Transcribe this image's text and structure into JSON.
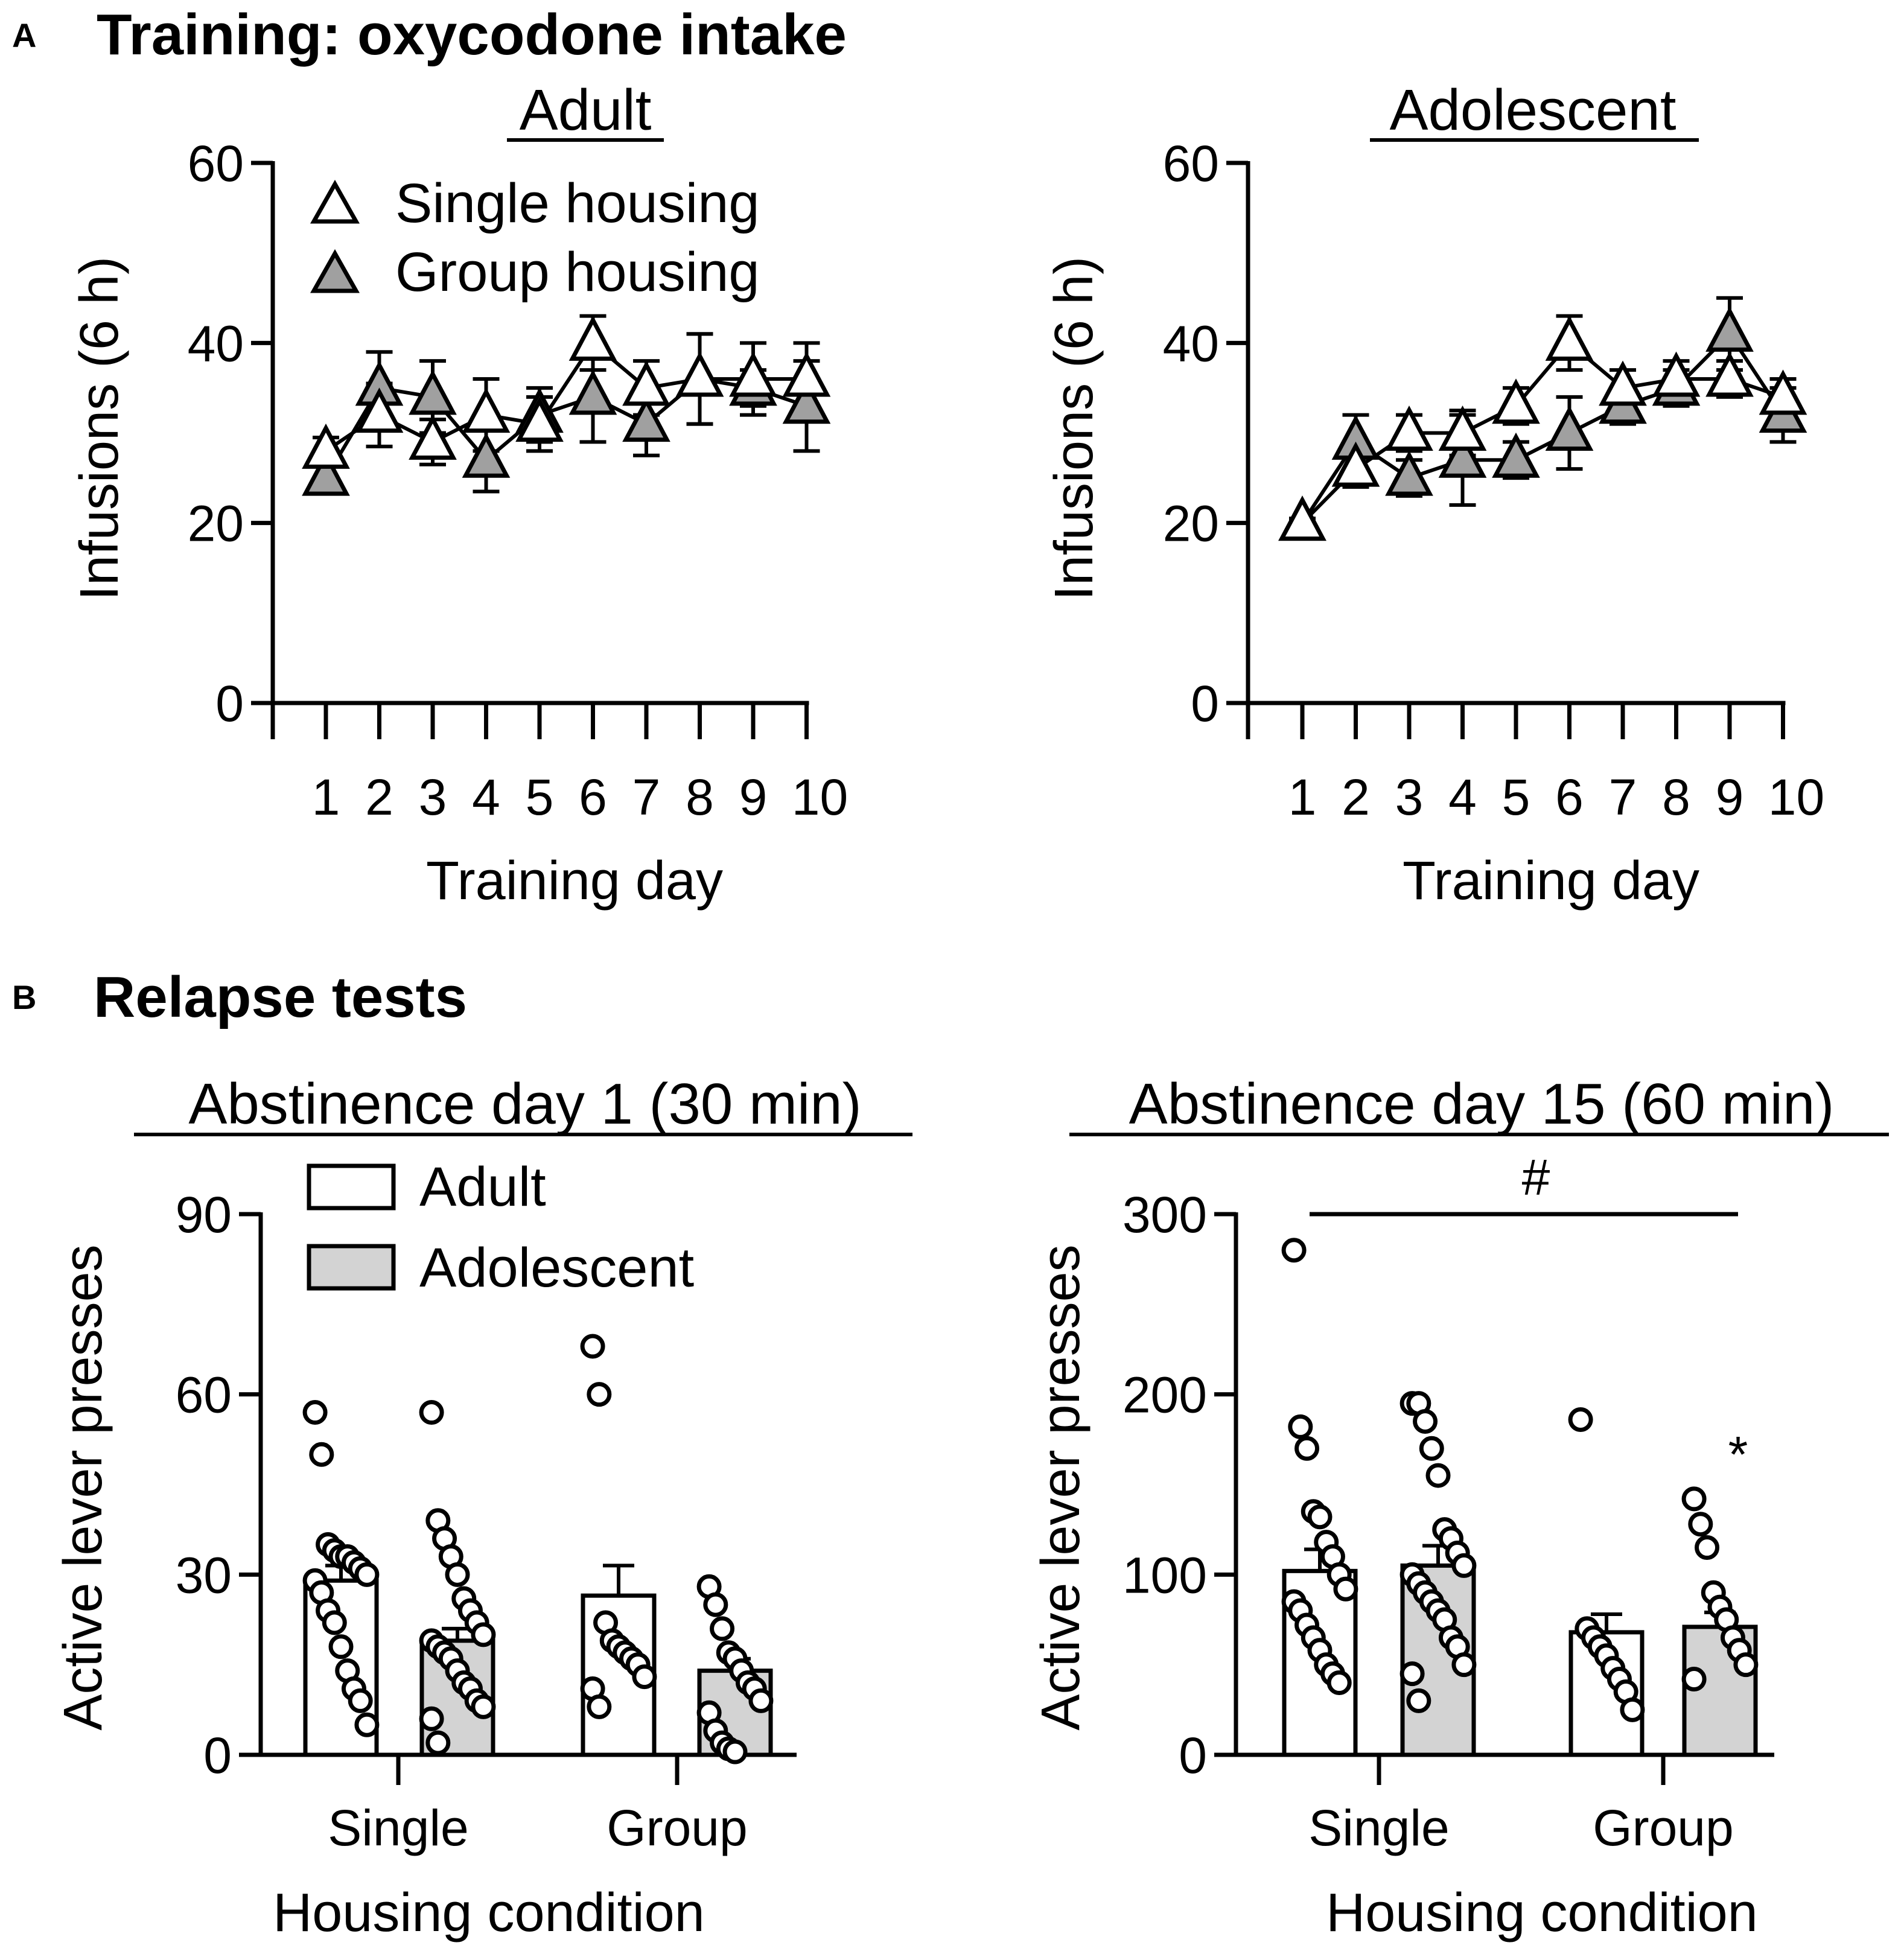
{
  "figure": {
    "panel_a": {
      "letter": "A",
      "title": "Training: oxycodone intake"
    },
    "panel_b": {
      "letter": "B",
      "title": "Relapse tests"
    }
  },
  "colors": {
    "single": "#ffffff",
    "group_triangle": "#a0a0a0",
    "adolescent_bar": "#d3d3d3",
    "ink": "#000000"
  },
  "chart_data": [
    {
      "id": "adult",
      "type": "line",
      "title": "Adult",
      "xlabel": "Training day",
      "ylabel": "Infusions (6 h)",
      "ylim": [
        0,
        60
      ],
      "yticks": [
        0,
        20,
        40,
        60
      ],
      "x": [
        1,
        2,
        3,
        4,
        5,
        6,
        7,
        8,
        9,
        10
      ],
      "legend": {
        "position": "top-left",
        "entries": [
          "Single housing",
          "Group housing"
        ]
      },
      "series": [
        {
          "name": "Single housing",
          "marker": "open-triangle",
          "values": [
            28,
            32,
            29,
            32,
            31,
            40,
            35,
            36,
            36,
            36
          ],
          "errors": [
            1.5,
            3.5,
            2.5,
            4,
            3,
            3,
            3,
            5,
            4,
            4
          ]
        },
        {
          "name": "Group housing",
          "marker": "gray-triangle",
          "values": [
            25,
            35,
            34,
            27,
            32,
            34,
            31,
            36,
            35,
            33
          ],
          "errors": [
            1.5,
            4,
            4,
            3.5,
            3,
            5,
            3.5,
            5,
            2,
            5
          ]
        }
      ]
    },
    {
      "id": "adolescent",
      "type": "line",
      "title": "Adolescent",
      "xlabel": "Training day",
      "ylabel": "Infusions (6 h)",
      "ylim": [
        0,
        60
      ],
      "yticks": [
        0,
        20,
        40,
        60
      ],
      "x": [
        1,
        2,
        3,
        4,
        5,
        6,
        7,
        8,
        9,
        10
      ],
      "series": [
        {
          "name": "Single housing",
          "marker": "open-triangle",
          "values": [
            20,
            26,
            30,
            30,
            33,
            40,
            35,
            36,
            36,
            34
          ],
          "errors": [
            0.5,
            2,
            2,
            2.5,
            2,
            3,
            2,
            2,
            2,
            2
          ]
        },
        {
          "name": "Group housing",
          "marker": "gray-triangle",
          "values": [
            20,
            29,
            25,
            27,
            27,
            30,
            33,
            35,
            41,
            32
          ],
          "errors": [
            0.5,
            3,
            2,
            5,
            2,
            4,
            2,
            2,
            4,
            3
          ]
        }
      ]
    },
    {
      "id": "abstinence1",
      "type": "bar",
      "title": "Abstinence day 1 (30 min)",
      "xlabel": "Housing condition",
      "ylabel": "Active lever presses",
      "ylim": [
        0,
        90
      ],
      "yticks": [
        0,
        30,
        60,
        90
      ],
      "categories": [
        "Single",
        "Group"
      ],
      "legend": {
        "position": "top-left",
        "entries": [
          "Adult",
          "Adolescent"
        ]
      },
      "series": [
        {
          "name": "Adult",
          "values": [
            29,
            26.5
          ],
          "errors": [
            2.5,
            5
          ],
          "points": [
            [
              57,
              50,
              35,
              34,
              33,
              33,
              32,
              31,
              30,
              29,
              27,
              24,
              22,
              18,
              14,
              11,
              9,
              5
            ],
            [
              68,
              60,
              22,
              19,
              18,
              17,
              16,
              15,
              13,
              11,
              8
            ]
          ]
        },
        {
          "name": "Adolescent",
          "values": [
            19,
            14
          ],
          "errors": [
            2,
            2
          ],
          "points": [
            [
              57,
              39,
              36,
              33,
              30,
              26,
              24,
              22,
              20,
              19,
              18,
              17,
              16,
              14,
              12,
              11,
              9,
              8,
              6,
              2
            ],
            [
              28,
              25,
              21,
              17,
              16,
              14,
              12,
              11,
              9,
              7,
              4,
              2,
              1,
              0.5
            ]
          ]
        }
      ]
    },
    {
      "id": "abstinence15",
      "type": "bar",
      "title": "Abstinence day 15 (60 min)",
      "xlabel": "Housing condition",
      "ylabel": "Active lever presses",
      "ylim": [
        0,
        300
      ],
      "yticks": [
        0,
        100,
        200,
        300
      ],
      "categories": [
        "Single",
        "Group"
      ],
      "annotations": {
        "bracket_label": "#",
        "star_label": "*"
      },
      "series": [
        {
          "name": "Adult",
          "values": [
            102,
            68
          ],
          "errors": [
            12,
            10
          ],
          "points": [
            [
              280,
              182,
              170,
              135,
              132,
              118,
              110,
              100,
              92,
              85,
              80,
              72,
              65,
              58,
              50,
              45,
              40
            ],
            [
              186,
              70,
              65,
              60,
              55,
              48,
              42,
              35,
              25
            ]
          ]
        },
        {
          "name": "Adolescent",
          "values": [
            105,
            71
          ],
          "errors": [
            11,
            8
          ],
          "points": [
            [
              195,
              195,
              185,
              170,
              155,
              125,
              120,
              112,
              105,
              100,
              95,
              90,
              85,
              80,
              75,
              65,
              60,
              50,
              45,
              30
            ],
            [
              142,
              128,
              115,
              90,
              82,
              75,
              65,
              58,
              50,
              42
            ]
          ]
        }
      ]
    }
  ]
}
